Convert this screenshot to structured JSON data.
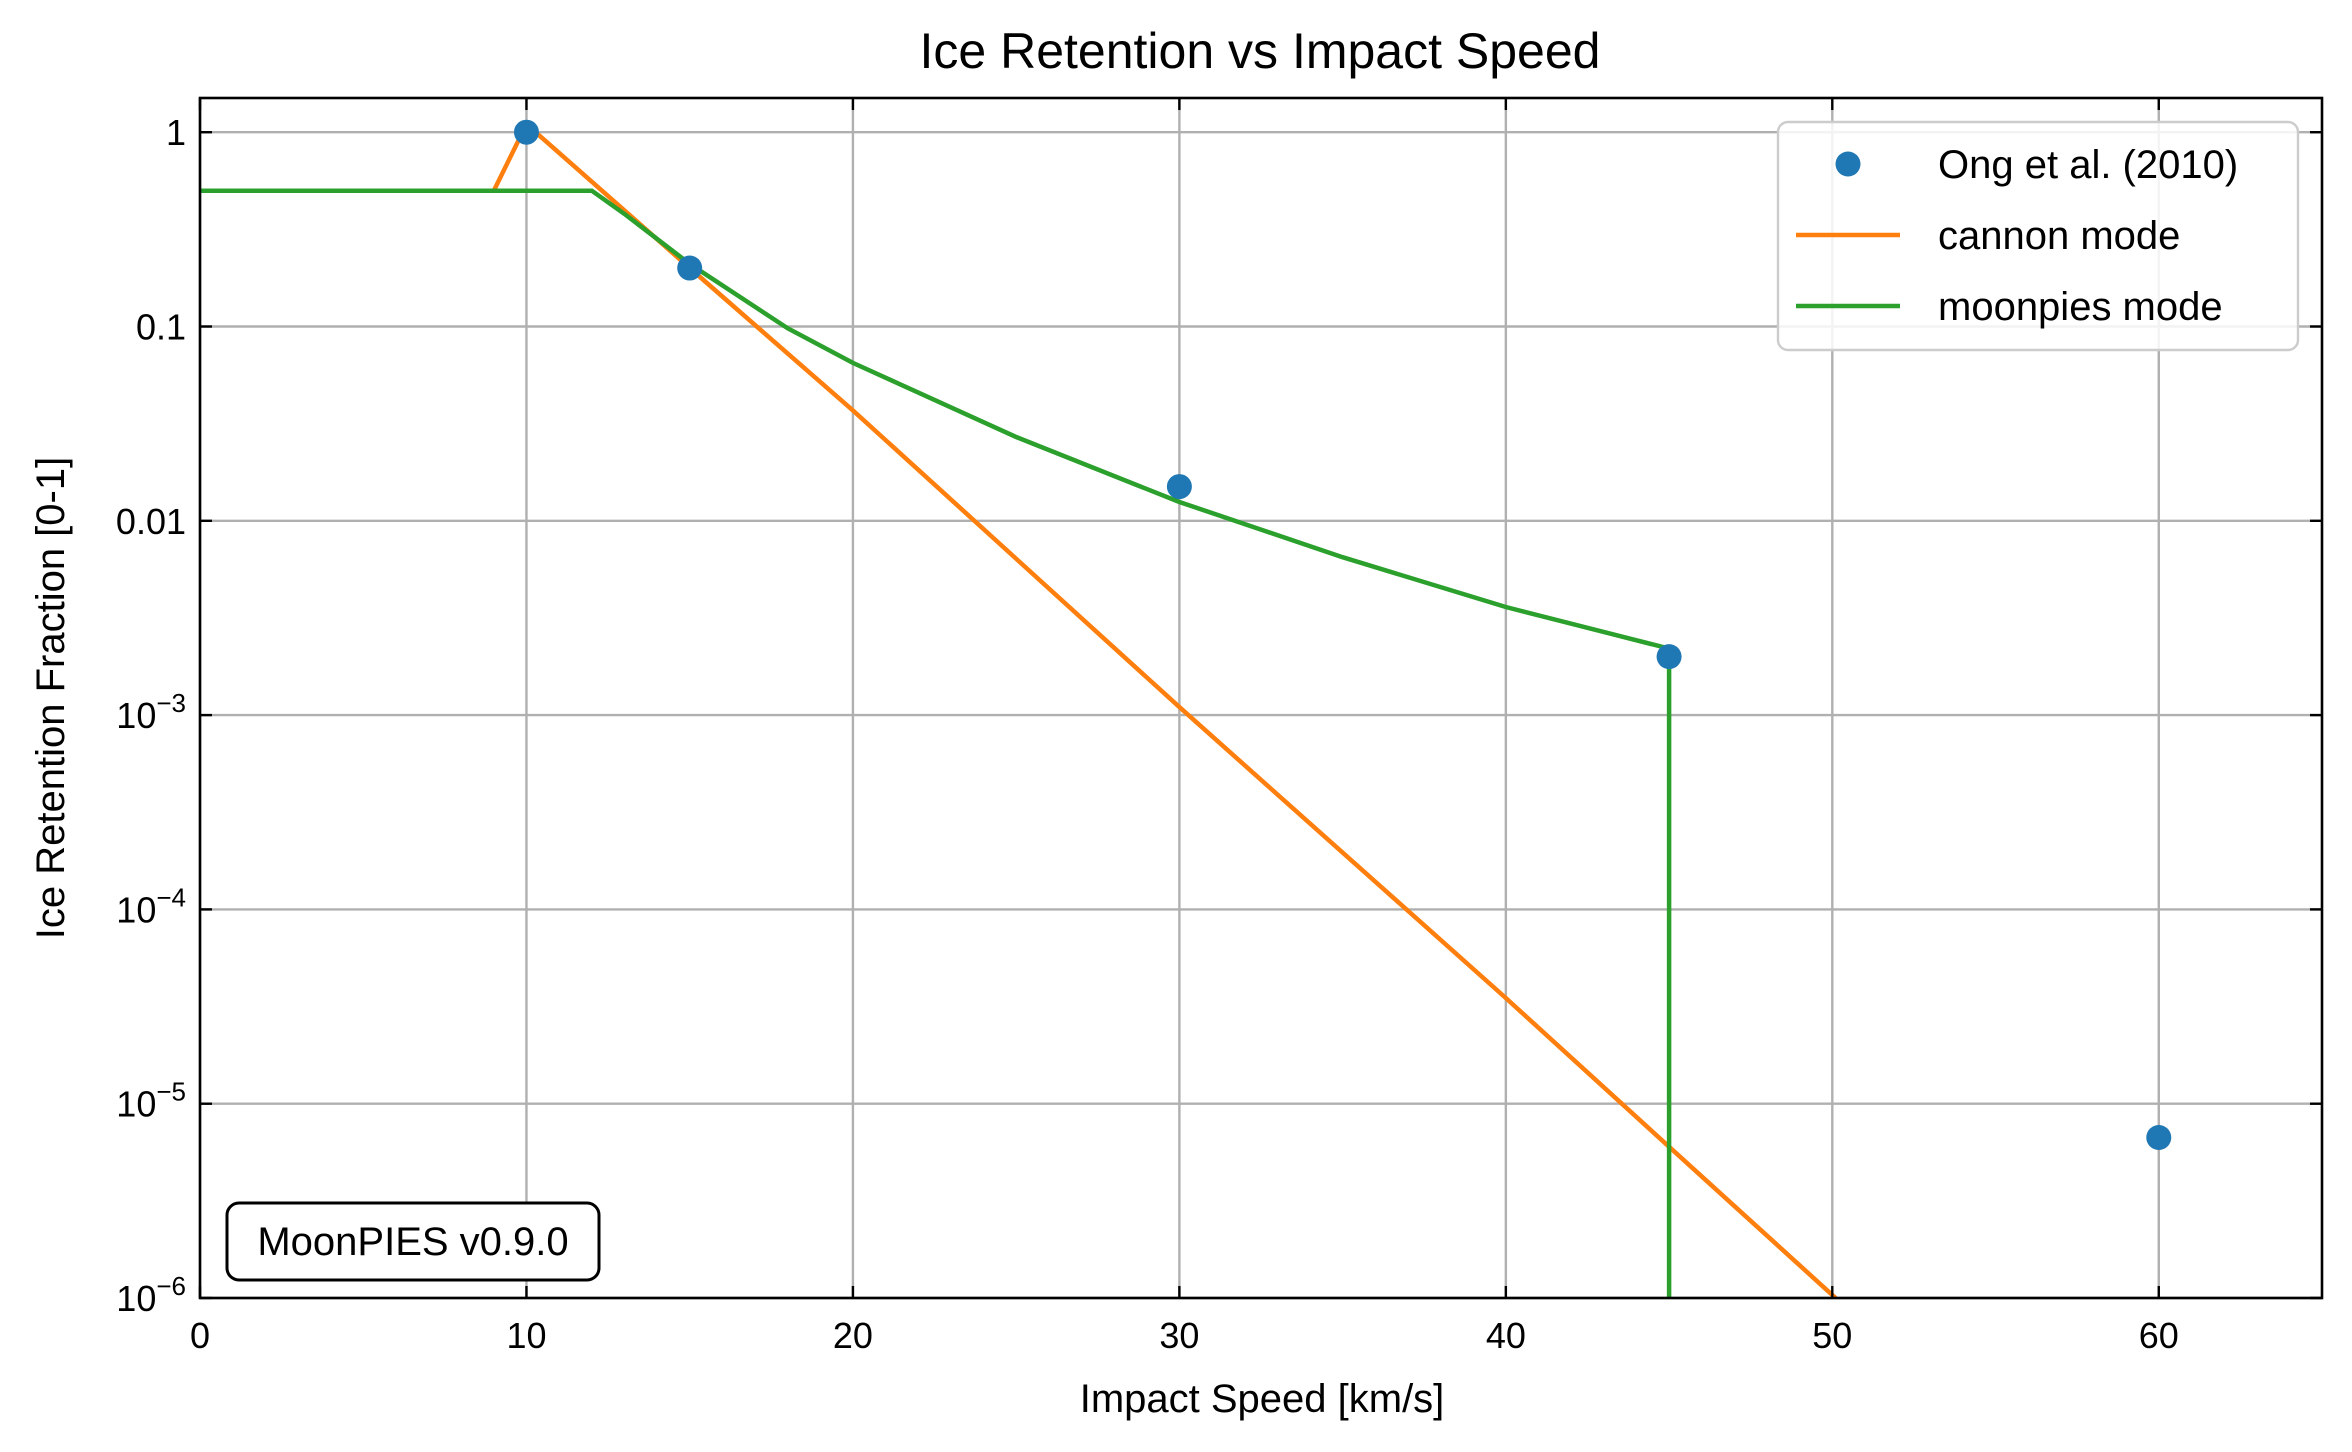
{
  "chart_data": {
    "type": "line",
    "title": "Ice Retention vs Impact Speed",
    "xlabel": "Impact Speed [km/s]",
    "ylabel": "Ice Retention Fraction [0-1]",
    "xlim": [
      0,
      65
    ],
    "ylim": [
      1e-06,
      1.5
    ],
    "yscale": "log",
    "grid": true,
    "legend_position": "top-right",
    "x_ticks": [
      0,
      10,
      20,
      30,
      40,
      50,
      60
    ],
    "x_tick_labels": [
      "0",
      "10",
      "20",
      "30",
      "40",
      "50",
      "60"
    ],
    "y_ticks": [
      {
        "value": 1,
        "base": "1",
        "exp": ""
      },
      {
        "value": 0.1,
        "base": "0.1",
        "exp": ""
      },
      {
        "value": 0.01,
        "base": "0.01",
        "exp": ""
      },
      {
        "value": 0.001,
        "base": "10",
        "exp": "−3"
      },
      {
        "value": 0.0001,
        "base": "10",
        "exp": "−4"
      },
      {
        "value": 1e-05,
        "base": "10",
        "exp": "−5"
      },
      {
        "value": 1e-06,
        "base": "10",
        "exp": "−6"
      }
    ],
    "series": [
      {
        "name": "Ong et al. (2010)",
        "kind": "scatter",
        "color": "#1f77b4",
        "x": [
          10,
          15,
          30,
          45,
          60
        ],
        "y": [
          1.0,
          0.2,
          0.015,
          0.002,
          6.7e-06
        ]
      },
      {
        "name": "cannon mode",
        "kind": "line",
        "color": "#ff7f0e",
        "x": [
          0,
          9,
          10,
          15,
          20,
          30,
          40,
          45,
          50.1
        ],
        "y": [
          0.5,
          0.5,
          1.1,
          0.2,
          0.037,
          0.0011,
          3.5e-05,
          6e-06,
          1e-06
        ]
      },
      {
        "name": "moonpies mode",
        "kind": "line",
        "color": "#2ca02c",
        "x": [
          0,
          12,
          13,
          15,
          18,
          20,
          25,
          30,
          35,
          40,
          45,
          45,
          45
        ],
        "y": [
          0.5,
          0.5,
          0.38,
          0.21,
          0.098,
          0.065,
          0.027,
          0.0125,
          0.0065,
          0.0036,
          0.0022,
          0.0022,
          1e-06
        ]
      }
    ]
  },
  "badge": {
    "text": "MoonPIES v0.9.0"
  }
}
